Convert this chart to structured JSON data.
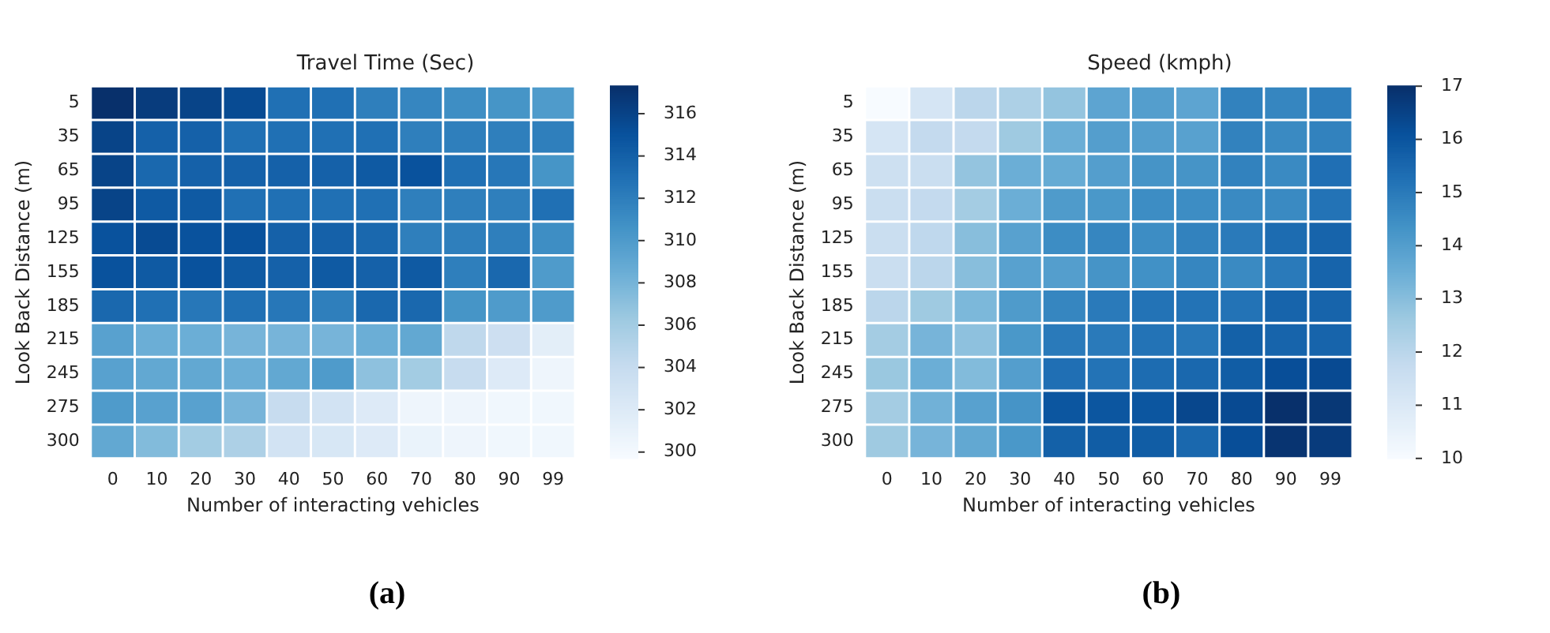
{
  "chart_data": [
    {
      "type": "heatmap",
      "title": "Travel Time (Sec)",
      "xlabel": "Number of interacting vehicles",
      "ylabel": "Look Back Distance (m)",
      "categories": [
        "0",
        "10",
        "20",
        "30",
        "40",
        "50",
        "60",
        "70",
        "80",
        "90",
        "99"
      ],
      "y_categories": [
        "5",
        "35",
        "65",
        "95",
        "125",
        "155",
        "185",
        "215",
        "245",
        "275",
        "300"
      ],
      "cells": [
        [
          317.3,
          316.5,
          316,
          315.5,
          313,
          313,
          312,
          311.5,
          311,
          310.5,
          310
        ],
        [
          316,
          314,
          314,
          313,
          313,
          313,
          313,
          312,
          312,
          312,
          312
        ],
        [
          316,
          313.5,
          314,
          314,
          314,
          314,
          314.5,
          315,
          313,
          312.5,
          310.5
        ],
        [
          316,
          314.5,
          314.5,
          313,
          313,
          313,
          313,
          312,
          312,
          312,
          313
        ],
        [
          315,
          315.5,
          315,
          315,
          314,
          314,
          313.5,
          312,
          312,
          312,
          311
        ],
        [
          315,
          314.5,
          315,
          314.5,
          314,
          314.5,
          314,
          314.5,
          312,
          313.5,
          310
        ],
        [
          313.5,
          313,
          312.5,
          313,
          312.5,
          312,
          313.5,
          313.5,
          310.5,
          310,
          310
        ],
        [
          309.5,
          308.5,
          308.5,
          308,
          308,
          308,
          308.5,
          309,
          304.5,
          303.5,
          301.5
        ],
        [
          309.5,
          309,
          309,
          308.5,
          309,
          310,
          307,
          306,
          304,
          302,
          300.5
        ],
        [
          310,
          309.5,
          309.5,
          308,
          304,
          303,
          302,
          300.5,
          300.5,
          300.3,
          300.3
        ],
        [
          309,
          307.5,
          306,
          305.5,
          303,
          302.5,
          302,
          300.8,
          300.5,
          300.3,
          300.3
        ]
      ],
      "clim": [
        299.7,
        317.3
      ],
      "cticks": [
        300,
        302,
        304,
        306,
        308,
        310,
        312,
        314,
        316
      ],
      "annotations": [
        "(a)"
      ]
    },
    {
      "type": "heatmap",
      "title": "Speed (kmph)",
      "xlabel": "Number of interacting vehicles",
      "ylabel": "Look Back Distance (m)",
      "categories": [
        "0",
        "10",
        "20",
        "30",
        "40",
        "50",
        "60",
        "70",
        "80",
        "90",
        "99"
      ],
      "y_categories": [
        "5",
        "35",
        "65",
        "95",
        "125",
        "155",
        "185",
        "215",
        "245",
        "275",
        "300"
      ],
      "cells": [
        [
          10.0,
          11.2,
          12.0,
          12.3,
          12.8,
          13.8,
          14.0,
          13.8,
          14.8,
          14.7,
          14.9
        ],
        [
          11.2,
          11.8,
          11.8,
          12.6,
          13.5,
          14.0,
          14.0,
          13.9,
          14.8,
          14.6,
          14.8
        ],
        [
          11.5,
          11.6,
          12.8,
          13.5,
          13.6,
          14.0,
          14.3,
          14.3,
          14.8,
          14.6,
          15.3
        ],
        [
          11.6,
          11.8,
          12.5,
          13.5,
          14.1,
          14.2,
          14.5,
          14.5,
          14.6,
          14.6,
          15.2
        ],
        [
          11.6,
          11.9,
          13.0,
          13.9,
          14.5,
          14.7,
          14.5,
          14.8,
          15.0,
          15.4,
          15.6
        ],
        [
          11.6,
          12.0,
          13.0,
          13.9,
          14.0,
          14.3,
          14.4,
          14.7,
          14.6,
          15.0,
          15.6
        ],
        [
          12.0,
          12.6,
          13.2,
          14.1,
          14.7,
          15.0,
          15.2,
          15.2,
          15.2,
          15.6,
          15.6
        ],
        [
          12.5,
          13.3,
          12.9,
          14.2,
          15.0,
          15.0,
          15.2,
          15.1,
          15.7,
          15.6,
          15.6
        ],
        [
          12.7,
          13.5,
          13.1,
          14.0,
          15.3,
          15.2,
          15.4,
          15.5,
          15.8,
          16.2,
          16.3
        ],
        [
          12.5,
          13.4,
          13.9,
          14.3,
          16.0,
          16.0,
          16.0,
          16.4,
          16.3,
          17.0,
          16.8
        ],
        [
          12.6,
          13.3,
          13.7,
          14.2,
          15.7,
          15.8,
          15.8,
          15.5,
          16.2,
          16.9,
          16.7
        ]
      ],
      "clim": [
        10,
        17
      ],
      "cticks": [
        10,
        11,
        12,
        13,
        14,
        15,
        16,
        17
      ],
      "annotations": [
        "(b)"
      ]
    }
  ]
}
